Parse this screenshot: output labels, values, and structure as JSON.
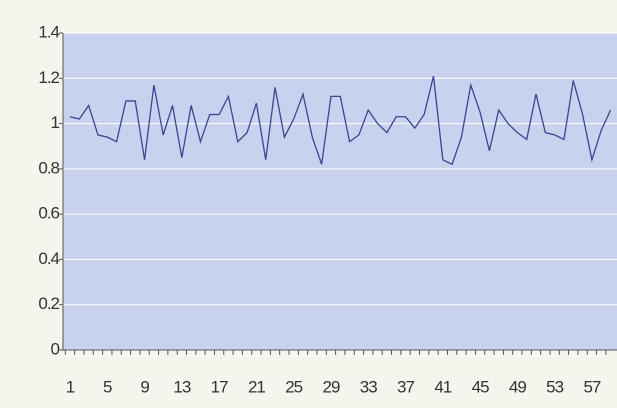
{
  "chart_data": {
    "type": "line",
    "categories": [
      1,
      null,
      null,
      null,
      5,
      null,
      null,
      null,
      9,
      null,
      null,
      null,
      13,
      null,
      null,
      null,
      17,
      null,
      null,
      null,
      21,
      null,
      null,
      null,
      25,
      null,
      null,
      null,
      29,
      null,
      null,
      null,
      33,
      null,
      null,
      null,
      37,
      null,
      null,
      null,
      41,
      null,
      null,
      null,
      45,
      null,
      null,
      null,
      49,
      null,
      null,
      null,
      53,
      null,
      null,
      null,
      57,
      null,
      null
    ],
    "series": [
      {
        "color": "#3a4690",
        "values": [
          1.03,
          1.02,
          1.08,
          0.95,
          0.94,
          0.92,
          1.1,
          1.1,
          0.84,
          1.17,
          0.95,
          1.08,
          0.85,
          1.08,
          0.92,
          1.04,
          1.04,
          1.12,
          0.92,
          0.96,
          1.09,
          0.84,
          1.16,
          0.94,
          1.02,
          1.13,
          0.94,
          0.82,
          1.12,
          1.12,
          0.92,
          0.95,
          1.06,
          1.0,
          0.96,
          1.03,
          1.03,
          0.98,
          1.04,
          1.21,
          0.84,
          0.82,
          0.94,
          1.17,
          1.05,
          0.88,
          1.06,
          1.0,
          0.96,
          0.93,
          1.13,
          0.96,
          0.95,
          0.93,
          1.19,
          1.04,
          0.84,
          0.97,
          1.06
        ]
      }
    ],
    "ylim": [
      0,
      1.4
    ],
    "yticks": [
      0,
      0.2,
      0.4,
      0.6,
      0.8,
      1,
      1.2,
      1.4
    ],
    "grid": true
  }
}
